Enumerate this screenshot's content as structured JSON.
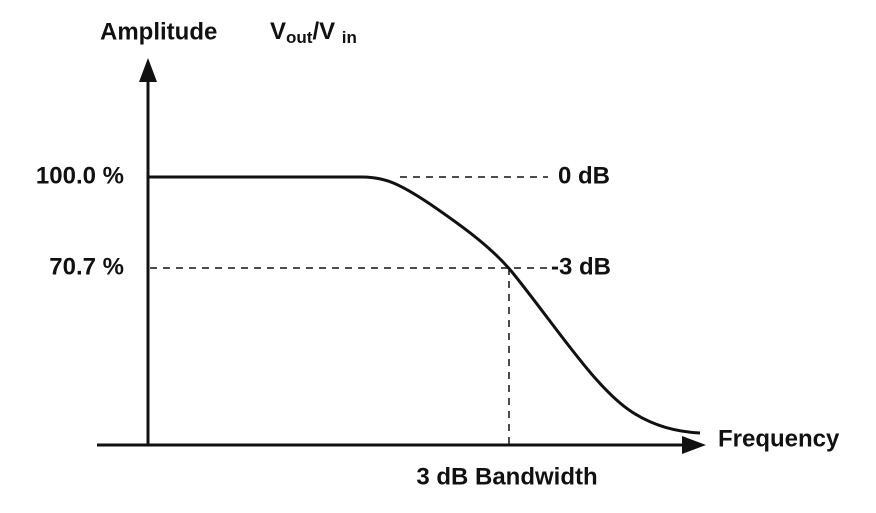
{
  "title": "Amplitude",
  "ratio_label": {
    "parts": [
      "V",
      "out",
      "/V ",
      "in"
    ]
  },
  "levels": [
    {
      "amplitude": "100.0 %",
      "gain": "0 dB"
    },
    {
      "amplitude": "70.7 %",
      "gain": "-3 dB"
    }
  ],
  "x_axis_label": "Frequency",
  "bandwidth_label": "3 dB Bandwidth"
}
